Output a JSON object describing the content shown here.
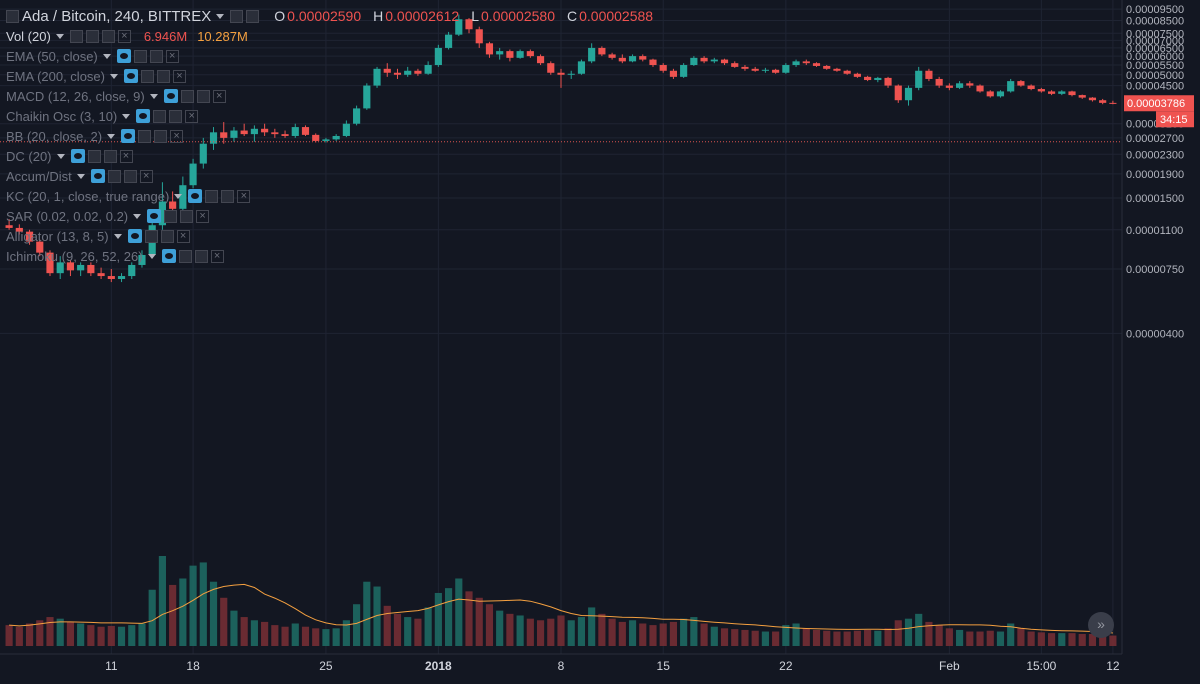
{
  "header": {
    "symbol": "Ada / Bitcoin, 240, BITTREX",
    "ohlc": [
      {
        "key": "O",
        "value": "0.00002590"
      },
      {
        "key": "H",
        "value": "0.00002612"
      },
      {
        "key": "L",
        "value": "0.00002580"
      },
      {
        "key": "C",
        "value": "0.00002588"
      }
    ]
  },
  "volume_legend": {
    "label": "Vol (20)",
    "value_a": "6.946M",
    "value_b": "10.287M"
  },
  "indicators": [
    "EMA (50, close)",
    "EMA (200, close)",
    "MACD (12, 26, close, 9)",
    "Chaikin Osc (3, 10)",
    "BB (20, close, 2)",
    "DC (20)",
    "Accum/Dist",
    "KC (20, 1, close, true range)",
    "SAR (0.02, 0.02, 0.2)",
    "Alligator (13, 8, 5)",
    "Ichimoku (9, 26, 52, 26)"
  ],
  "price_badge": "0.00003786",
  "countdown_badge": "34:15",
  "scroll_icon": "double-chevron-right-icon",
  "colors": {
    "up": "#26a69a",
    "down": "#ef5350",
    "background": "#131722",
    "grid": "#1f2433",
    "ma": "#f4a040",
    "ref_line": "#d9534f"
  },
  "chart_data": {
    "type": "candlestick",
    "xlabels": [
      {
        "i": 10,
        "text": "11"
      },
      {
        "i": 18,
        "text": "18"
      },
      {
        "i": 31,
        "text": "25"
      },
      {
        "i": 42,
        "text": "2018"
      },
      {
        "i": 54,
        "text": "8"
      },
      {
        "i": 64,
        "text": "15"
      },
      {
        "i": 76,
        "text": "22"
      },
      {
        "i": 92,
        "text": "Feb"
      },
      {
        "i": 101,
        "text": "15:00"
      },
      {
        "i": 108,
        "text": "12"
      }
    ],
    "yticks": [
      "0.00000400",
      "0.00000750",
      "0.00001100",
      "0.00001500",
      "0.00001900",
      "0.00002300",
      "0.00002700",
      "0.00003100",
      "0.00004500",
      "0.00005000",
      "0.00005500",
      "0.00006000",
      "0.00006500",
      "0.00007000",
      "0.00007500",
      "0.00008500",
      "0.00009500"
    ],
    "yrange": [
      2e-07,
      9.6e-05
    ],
    "ref_line": 2.6e-05,
    "last_price": 3.786e-05,
    "candles": [
      {
        "o": 1.15,
        "h": 1.22,
        "l": 1.1,
        "c": 1.12,
        "v": 130
      },
      {
        "o": 1.12,
        "h": 1.16,
        "l": 1.05,
        "c": 1.08,
        "v": 120
      },
      {
        "o": 1.08,
        "h": 1.1,
        "l": 0.95,
        "c": 0.98,
        "v": 140
      },
      {
        "o": 0.98,
        "h": 1.0,
        "l": 0.85,
        "c": 0.88,
        "v": 160
      },
      {
        "o": 0.88,
        "h": 0.9,
        "l": 0.7,
        "c": 0.72,
        "v": 180
      },
      {
        "o": 0.72,
        "h": 0.85,
        "l": 0.68,
        "c": 0.8,
        "v": 170
      },
      {
        "o": 0.8,
        "h": 0.82,
        "l": 0.7,
        "c": 0.74,
        "v": 150
      },
      {
        "o": 0.74,
        "h": 0.8,
        "l": 0.7,
        "c": 0.78,
        "v": 140
      },
      {
        "o": 0.78,
        "h": 0.8,
        "l": 0.7,
        "c": 0.72,
        "v": 130
      },
      {
        "o": 0.72,
        "h": 0.76,
        "l": 0.68,
        "c": 0.7,
        "v": 120
      },
      {
        "o": 0.7,
        "h": 0.75,
        "l": 0.66,
        "c": 0.68,
        "v": 125
      },
      {
        "o": 0.68,
        "h": 0.72,
        "l": 0.66,
        "c": 0.7,
        "v": 120
      },
      {
        "o": 0.7,
        "h": 0.8,
        "l": 0.68,
        "c": 0.78,
        "v": 130
      },
      {
        "o": 0.78,
        "h": 0.9,
        "l": 0.76,
        "c": 0.86,
        "v": 140
      },
      {
        "o": 0.86,
        "h": 1.2,
        "l": 0.84,
        "c": 1.15,
        "v": 350
      },
      {
        "o": 1.15,
        "h": 1.75,
        "l": 1.1,
        "c": 1.45,
        "v": 560
      },
      {
        "o": 1.45,
        "h": 1.6,
        "l": 1.25,
        "c": 1.35,
        "v": 380
      },
      {
        "o": 1.35,
        "h": 1.85,
        "l": 1.3,
        "c": 1.7,
        "v": 420
      },
      {
        "o": 1.7,
        "h": 2.2,
        "l": 1.65,
        "c": 2.1,
        "v": 500
      },
      {
        "o": 2.1,
        "h": 2.7,
        "l": 2.0,
        "c": 2.55,
        "v": 520
      },
      {
        "o": 2.55,
        "h": 3.0,
        "l": 2.4,
        "c": 2.85,
        "v": 400
      },
      {
        "o": 2.85,
        "h": 3.15,
        "l": 2.55,
        "c": 2.7,
        "v": 300
      },
      {
        "o": 2.7,
        "h": 3.0,
        "l": 2.6,
        "c": 2.9,
        "v": 220
      },
      {
        "o": 2.9,
        "h": 3.1,
        "l": 2.75,
        "c": 2.8,
        "v": 180
      },
      {
        "o": 2.8,
        "h": 3.05,
        "l": 2.6,
        "c": 2.95,
        "v": 160
      },
      {
        "o": 2.95,
        "h": 3.1,
        "l": 2.75,
        "c": 2.85,
        "v": 150
      },
      {
        "o": 2.85,
        "h": 2.95,
        "l": 2.7,
        "c": 2.8,
        "v": 130
      },
      {
        "o": 2.8,
        "h": 2.9,
        "l": 2.7,
        "c": 2.75,
        "v": 120
      },
      {
        "o": 2.75,
        "h": 3.1,
        "l": 2.7,
        "c": 3.0,
        "v": 140
      },
      {
        "o": 3.0,
        "h": 3.05,
        "l": 2.75,
        "c": 2.78,
        "v": 120
      },
      {
        "o": 2.78,
        "h": 2.82,
        "l": 2.58,
        "c": 2.62,
        "v": 110
      },
      {
        "o": 2.62,
        "h": 2.7,
        "l": 2.58,
        "c": 2.66,
        "v": 105
      },
      {
        "o": 2.66,
        "h": 2.8,
        "l": 2.62,
        "c": 2.75,
        "v": 110
      },
      {
        "o": 2.75,
        "h": 3.2,
        "l": 2.72,
        "c": 3.1,
        "v": 160
      },
      {
        "o": 3.1,
        "h": 3.7,
        "l": 3.05,
        "c": 3.6,
        "v": 260
      },
      {
        "o": 3.6,
        "h": 4.6,
        "l": 3.55,
        "c": 4.5,
        "v": 400
      },
      {
        "o": 4.5,
        "h": 5.4,
        "l": 4.4,
        "c": 5.3,
        "v": 370
      },
      {
        "o": 5.3,
        "h": 5.6,
        "l": 4.9,
        "c": 5.1,
        "v": 250
      },
      {
        "o": 5.1,
        "h": 5.3,
        "l": 4.8,
        "c": 5.0,
        "v": 200
      },
      {
        "o": 5.0,
        "h": 5.4,
        "l": 4.9,
        "c": 5.2,
        "v": 180
      },
      {
        "o": 5.2,
        "h": 5.3,
        "l": 4.95,
        "c": 5.05,
        "v": 170
      },
      {
        "o": 5.05,
        "h": 5.7,
        "l": 5.0,
        "c": 5.5,
        "v": 240
      },
      {
        "o": 5.5,
        "h": 6.7,
        "l": 5.4,
        "c": 6.5,
        "v": 330
      },
      {
        "o": 6.5,
        "h": 7.6,
        "l": 6.4,
        "c": 7.4,
        "v": 360
      },
      {
        "o": 7.4,
        "h": 9.0,
        "l": 7.3,
        "c": 8.6,
        "v": 420
      },
      {
        "o": 8.6,
        "h": 8.7,
        "l": 7.5,
        "c": 7.8,
        "v": 340
      },
      {
        "o": 7.8,
        "h": 8.0,
        "l": 6.5,
        "c": 6.8,
        "v": 300
      },
      {
        "o": 6.8,
        "h": 6.9,
        "l": 5.9,
        "c": 6.1,
        "v": 260
      },
      {
        "o": 6.1,
        "h": 6.5,
        "l": 5.8,
        "c": 6.3,
        "v": 220
      },
      {
        "o": 6.3,
        "h": 6.4,
        "l": 5.7,
        "c": 5.9,
        "v": 200
      },
      {
        "o": 5.9,
        "h": 6.4,
        "l": 5.85,
        "c": 6.3,
        "v": 190
      },
      {
        "o": 6.3,
        "h": 6.4,
        "l": 5.9,
        "c": 6.0,
        "v": 170
      },
      {
        "o": 6.0,
        "h": 6.1,
        "l": 5.5,
        "c": 5.6,
        "v": 160
      },
      {
        "o": 5.6,
        "h": 5.7,
        "l": 5.0,
        "c": 5.1,
        "v": 170
      },
      {
        "o": 5.1,
        "h": 5.3,
        "l": 4.4,
        "c": 5.0,
        "v": 190
      },
      {
        "o": 5.0,
        "h": 5.2,
        "l": 4.8,
        "c": 5.05,
        "v": 160
      },
      {
        "o": 5.05,
        "h": 5.8,
        "l": 5.0,
        "c": 5.7,
        "v": 180
      },
      {
        "o": 5.7,
        "h": 6.8,
        "l": 5.6,
        "c": 6.5,
        "v": 240
      },
      {
        "o": 6.5,
        "h": 6.6,
        "l": 6.0,
        "c": 6.1,
        "v": 200
      },
      {
        "o": 6.1,
        "h": 6.2,
        "l": 5.8,
        "c": 5.9,
        "v": 170
      },
      {
        "o": 5.9,
        "h": 6.1,
        "l": 5.6,
        "c": 5.7,
        "v": 150
      },
      {
        "o": 5.7,
        "h": 6.1,
        "l": 5.65,
        "c": 6.0,
        "v": 160
      },
      {
        "o": 6.0,
        "h": 6.1,
        "l": 5.7,
        "c": 5.8,
        "v": 140
      },
      {
        "o": 5.8,
        "h": 5.85,
        "l": 5.4,
        "c": 5.5,
        "v": 130
      },
      {
        "o": 5.5,
        "h": 5.6,
        "l": 5.1,
        "c": 5.2,
        "v": 140
      },
      {
        "o": 5.2,
        "h": 5.3,
        "l": 4.8,
        "c": 4.9,
        "v": 150
      },
      {
        "o": 4.9,
        "h": 5.6,
        "l": 4.85,
        "c": 5.5,
        "v": 170
      },
      {
        "o": 5.5,
        "h": 6.0,
        "l": 5.45,
        "c": 5.9,
        "v": 180
      },
      {
        "o": 5.9,
        "h": 6.0,
        "l": 5.6,
        "c": 5.7,
        "v": 140
      },
      {
        "o": 5.7,
        "h": 5.9,
        "l": 5.6,
        "c": 5.8,
        "v": 120
      },
      {
        "o": 5.8,
        "h": 5.85,
        "l": 5.5,
        "c": 5.6,
        "v": 110
      },
      {
        "o": 5.6,
        "h": 5.7,
        "l": 5.35,
        "c": 5.4,
        "v": 105
      },
      {
        "o": 5.4,
        "h": 5.5,
        "l": 5.2,
        "c": 5.3,
        "v": 100
      },
      {
        "o": 5.3,
        "h": 5.4,
        "l": 5.15,
        "c": 5.2,
        "v": 95
      },
      {
        "o": 5.2,
        "h": 5.35,
        "l": 5.1,
        "c": 5.25,
        "v": 90
      },
      {
        "o": 5.25,
        "h": 5.3,
        "l": 5.05,
        "c": 5.1,
        "v": 90
      },
      {
        "o": 5.1,
        "h": 5.6,
        "l": 5.05,
        "c": 5.5,
        "v": 130
      },
      {
        "o": 5.5,
        "h": 5.8,
        "l": 5.4,
        "c": 5.7,
        "v": 140
      },
      {
        "o": 5.7,
        "h": 5.8,
        "l": 5.5,
        "c": 5.6,
        "v": 110
      },
      {
        "o": 5.6,
        "h": 5.65,
        "l": 5.4,
        "c": 5.45,
        "v": 100
      },
      {
        "o": 5.45,
        "h": 5.5,
        "l": 5.25,
        "c": 5.3,
        "v": 95
      },
      {
        "o": 5.3,
        "h": 5.35,
        "l": 5.15,
        "c": 5.2,
        "v": 90
      },
      {
        "o": 5.2,
        "h": 5.25,
        "l": 5.0,
        "c": 5.05,
        "v": 90
      },
      {
        "o": 5.05,
        "h": 5.1,
        "l": 4.85,
        "c": 4.9,
        "v": 95
      },
      {
        "o": 4.9,
        "h": 4.95,
        "l": 4.7,
        "c": 4.75,
        "v": 100
      },
      {
        "o": 4.75,
        "h": 4.9,
        "l": 4.65,
        "c": 4.85,
        "v": 95
      },
      {
        "o": 4.85,
        "h": 4.9,
        "l": 4.4,
        "c": 4.5,
        "v": 110
      },
      {
        "o": 4.5,
        "h": 4.55,
        "l": 3.8,
        "c": 3.9,
        "v": 160
      },
      {
        "o": 3.9,
        "h": 4.5,
        "l": 3.7,
        "c": 4.4,
        "v": 170
      },
      {
        "o": 4.4,
        "h": 5.4,
        "l": 4.3,
        "c": 5.2,
        "v": 200
      },
      {
        "o": 5.2,
        "h": 5.3,
        "l": 4.7,
        "c": 4.8,
        "v": 150
      },
      {
        "o": 4.8,
        "h": 4.9,
        "l": 4.4,
        "c": 4.5,
        "v": 130
      },
      {
        "o": 4.5,
        "h": 4.6,
        "l": 4.3,
        "c": 4.4,
        "v": 110
      },
      {
        "o": 4.4,
        "h": 4.7,
        "l": 4.35,
        "c": 4.6,
        "v": 100
      },
      {
        "o": 4.6,
        "h": 4.7,
        "l": 4.4,
        "c": 4.5,
        "v": 90
      },
      {
        "o": 4.5,
        "h": 4.55,
        "l": 4.2,
        "c": 4.25,
        "v": 90
      },
      {
        "o": 4.25,
        "h": 4.3,
        "l": 4.0,
        "c": 4.05,
        "v": 95
      },
      {
        "o": 4.05,
        "h": 4.3,
        "l": 4.0,
        "c": 4.25,
        "v": 90
      },
      {
        "o": 4.25,
        "h": 4.8,
        "l": 4.2,
        "c": 4.7,
        "v": 140
      },
      {
        "o": 4.7,
        "h": 4.75,
        "l": 4.45,
        "c": 4.5,
        "v": 110
      },
      {
        "o": 4.5,
        "h": 4.55,
        "l": 4.3,
        "c": 4.35,
        "v": 90
      },
      {
        "o": 4.35,
        "h": 4.4,
        "l": 4.2,
        "c": 4.25,
        "v": 85
      },
      {
        "o": 4.25,
        "h": 4.3,
        "l": 4.1,
        "c": 4.15,
        "v": 80
      },
      {
        "o": 4.15,
        "h": 4.3,
        "l": 4.1,
        "c": 4.25,
        "v": 80
      },
      {
        "o": 4.25,
        "h": 4.28,
        "l": 4.05,
        "c": 4.1,
        "v": 80
      },
      {
        "o": 4.1,
        "h": 4.12,
        "l": 3.95,
        "c": 4.0,
        "v": 75
      },
      {
        "o": 4.0,
        "h": 4.02,
        "l": 3.85,
        "c": 3.9,
        "v": 75
      },
      {
        "o": 3.9,
        "h": 3.95,
        "l": 3.75,
        "c": 3.8,
        "v": 70
      },
      {
        "o": 3.8,
        "h": 3.88,
        "l": 3.75,
        "c": 3.79,
        "v": 65
      }
    ]
  }
}
